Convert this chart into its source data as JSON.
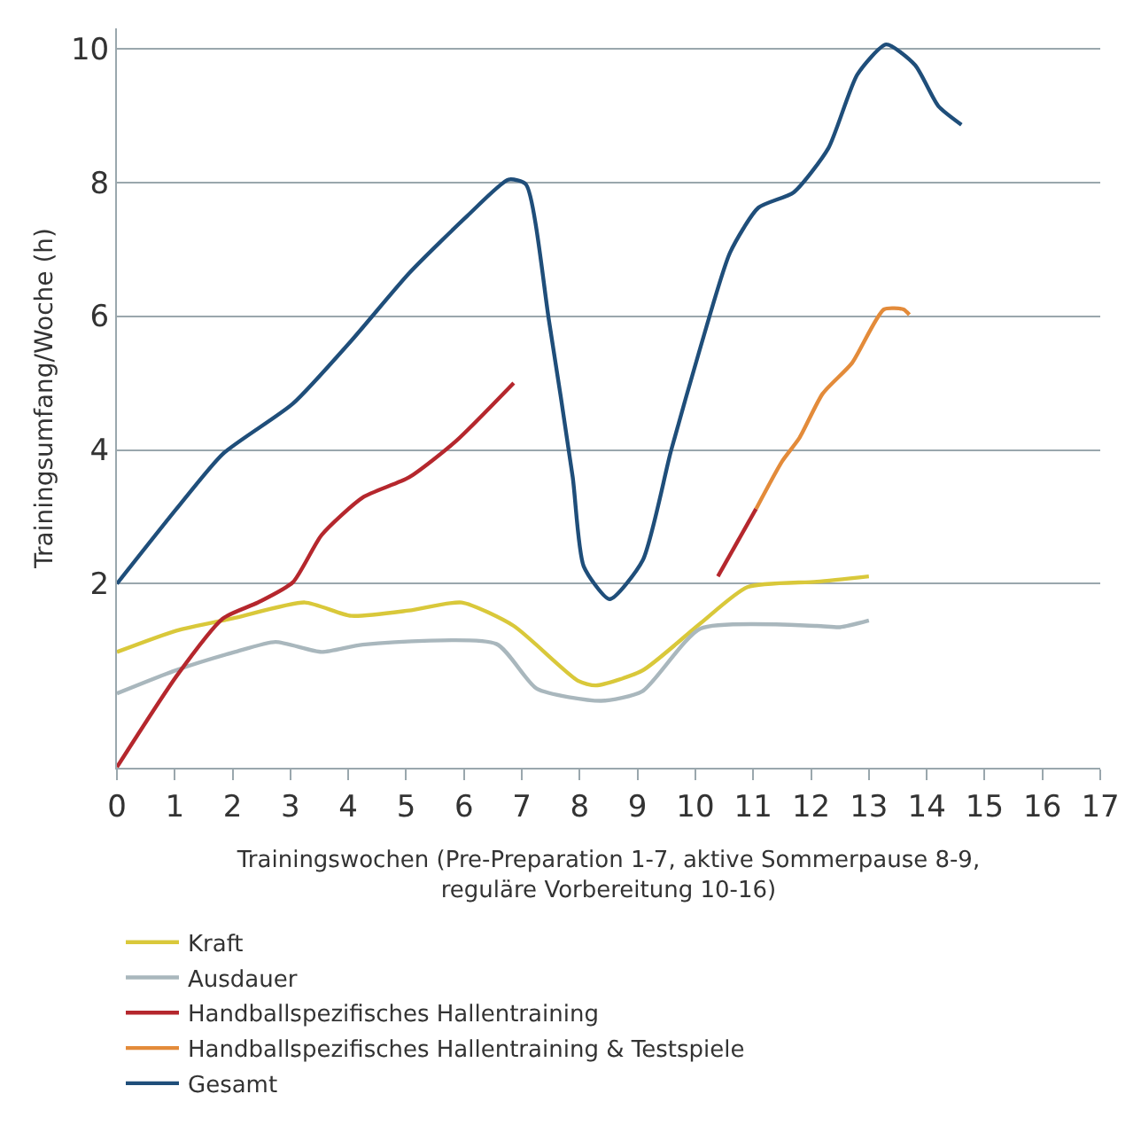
{
  "chart_data": {
    "type": "line",
    "xlabel": "Trainingswochen (Pre-Preparation 1-7, aktive Sommerpause 8-9,\nreguläre Vorbereitung 10-16)",
    "ylabel": "Trainingsumfang/Woche (h)",
    "xlim": [
      0,
      17
    ],
    "xticks": [
      0,
      1,
      2,
      3,
      4,
      5,
      6,
      7,
      8,
      9,
      10,
      11,
      12,
      13,
      14,
      15,
      16,
      17
    ],
    "ylim": [
      -0.75,
      10.3
    ],
    "yticks": [
      2,
      4,
      6,
      8,
      10
    ],
    "grid": "y",
    "legend": "bottom",
    "marker": "none",
    "line_style": "solid",
    "series": [
      {
        "name": "Kraft",
        "color": "#d9c83a",
        "x": [
          0,
          1.03,
          2.04,
          3.25,
          4.05,
          5.05,
          5.96,
          6.86,
          7.97,
          8.28,
          9.08,
          10.09,
          10.9,
          12.1,
          13.0
        ],
        "values": [
          0.98,
          1.3,
          1.49,
          1.72,
          1.52,
          1.6,
          1.72,
          1.37,
          0.55,
          0.48,
          0.7,
          1.41,
          1.95,
          2.03,
          2.11
        ]
      },
      {
        "name": "Ausdauer",
        "color": "#a9b7bd",
        "x": [
          0,
          1.03,
          2.04,
          2.74,
          3.54,
          4.25,
          6.56,
          7.26,
          8.37,
          9.08,
          10.09,
          12.1,
          12.5,
          13.0
        ],
        "values": [
          0.36,
          0.71,
          0.98,
          1.13,
          0.98,
          1.09,
          1.1,
          0.43,
          0.25,
          0.39,
          1.33,
          1.37,
          1.35,
          1.45
        ]
      },
      {
        "name": "Handballspezifisches Hallentraining",
        "color": "#b5272d",
        "x": [
          0,
          1.03,
          1.83,
          2.44,
          3.04,
          3.54,
          4.25,
          5.05,
          5.86,
          6.86,
          8.5,
          10.39,
          11.05
        ],
        "values": [
          -0.74,
          0.62,
          1.48,
          1.72,
          2.02,
          2.73,
          3.29,
          3.59,
          4.13,
          5.0,
          null,
          2.11,
          3.12
        ]
      },
      {
        "name": "Handballspezifisches Hallentraining & Testspiele",
        "color": "#e38b3a",
        "x": [
          11.05,
          11.5,
          11.8,
          12.2,
          12.71,
          13.26,
          13.6,
          13.7
        ],
        "values": [
          3.12,
          3.83,
          4.18,
          4.84,
          5.3,
          6.1,
          6.1,
          6.02
        ]
      },
      {
        "name": "Gesamt",
        "color": "#1f4e7a",
        "x": [
          0,
          1.03,
          1.83,
          3.04,
          4.05,
          5.05,
          6.06,
          6.77,
          7.07,
          7.47,
          7.88,
          8.07,
          8.52,
          9.09,
          9.58,
          10.09,
          10.6,
          11.09,
          11.7,
          12.3,
          12.8,
          13.3,
          13.8,
          14.2,
          14.6
        ],
        "values": [
          2.0,
          3.12,
          3.94,
          4.69,
          5.63,
          6.64,
          7.5,
          8.04,
          7.97,
          5.93,
          3.59,
          2.26,
          1.77,
          2.35,
          3.99,
          5.54,
          6.95,
          7.62,
          7.85,
          8.51,
          9.61,
          10.06,
          9.75,
          9.14,
          8.86
        ]
      }
    ]
  }
}
